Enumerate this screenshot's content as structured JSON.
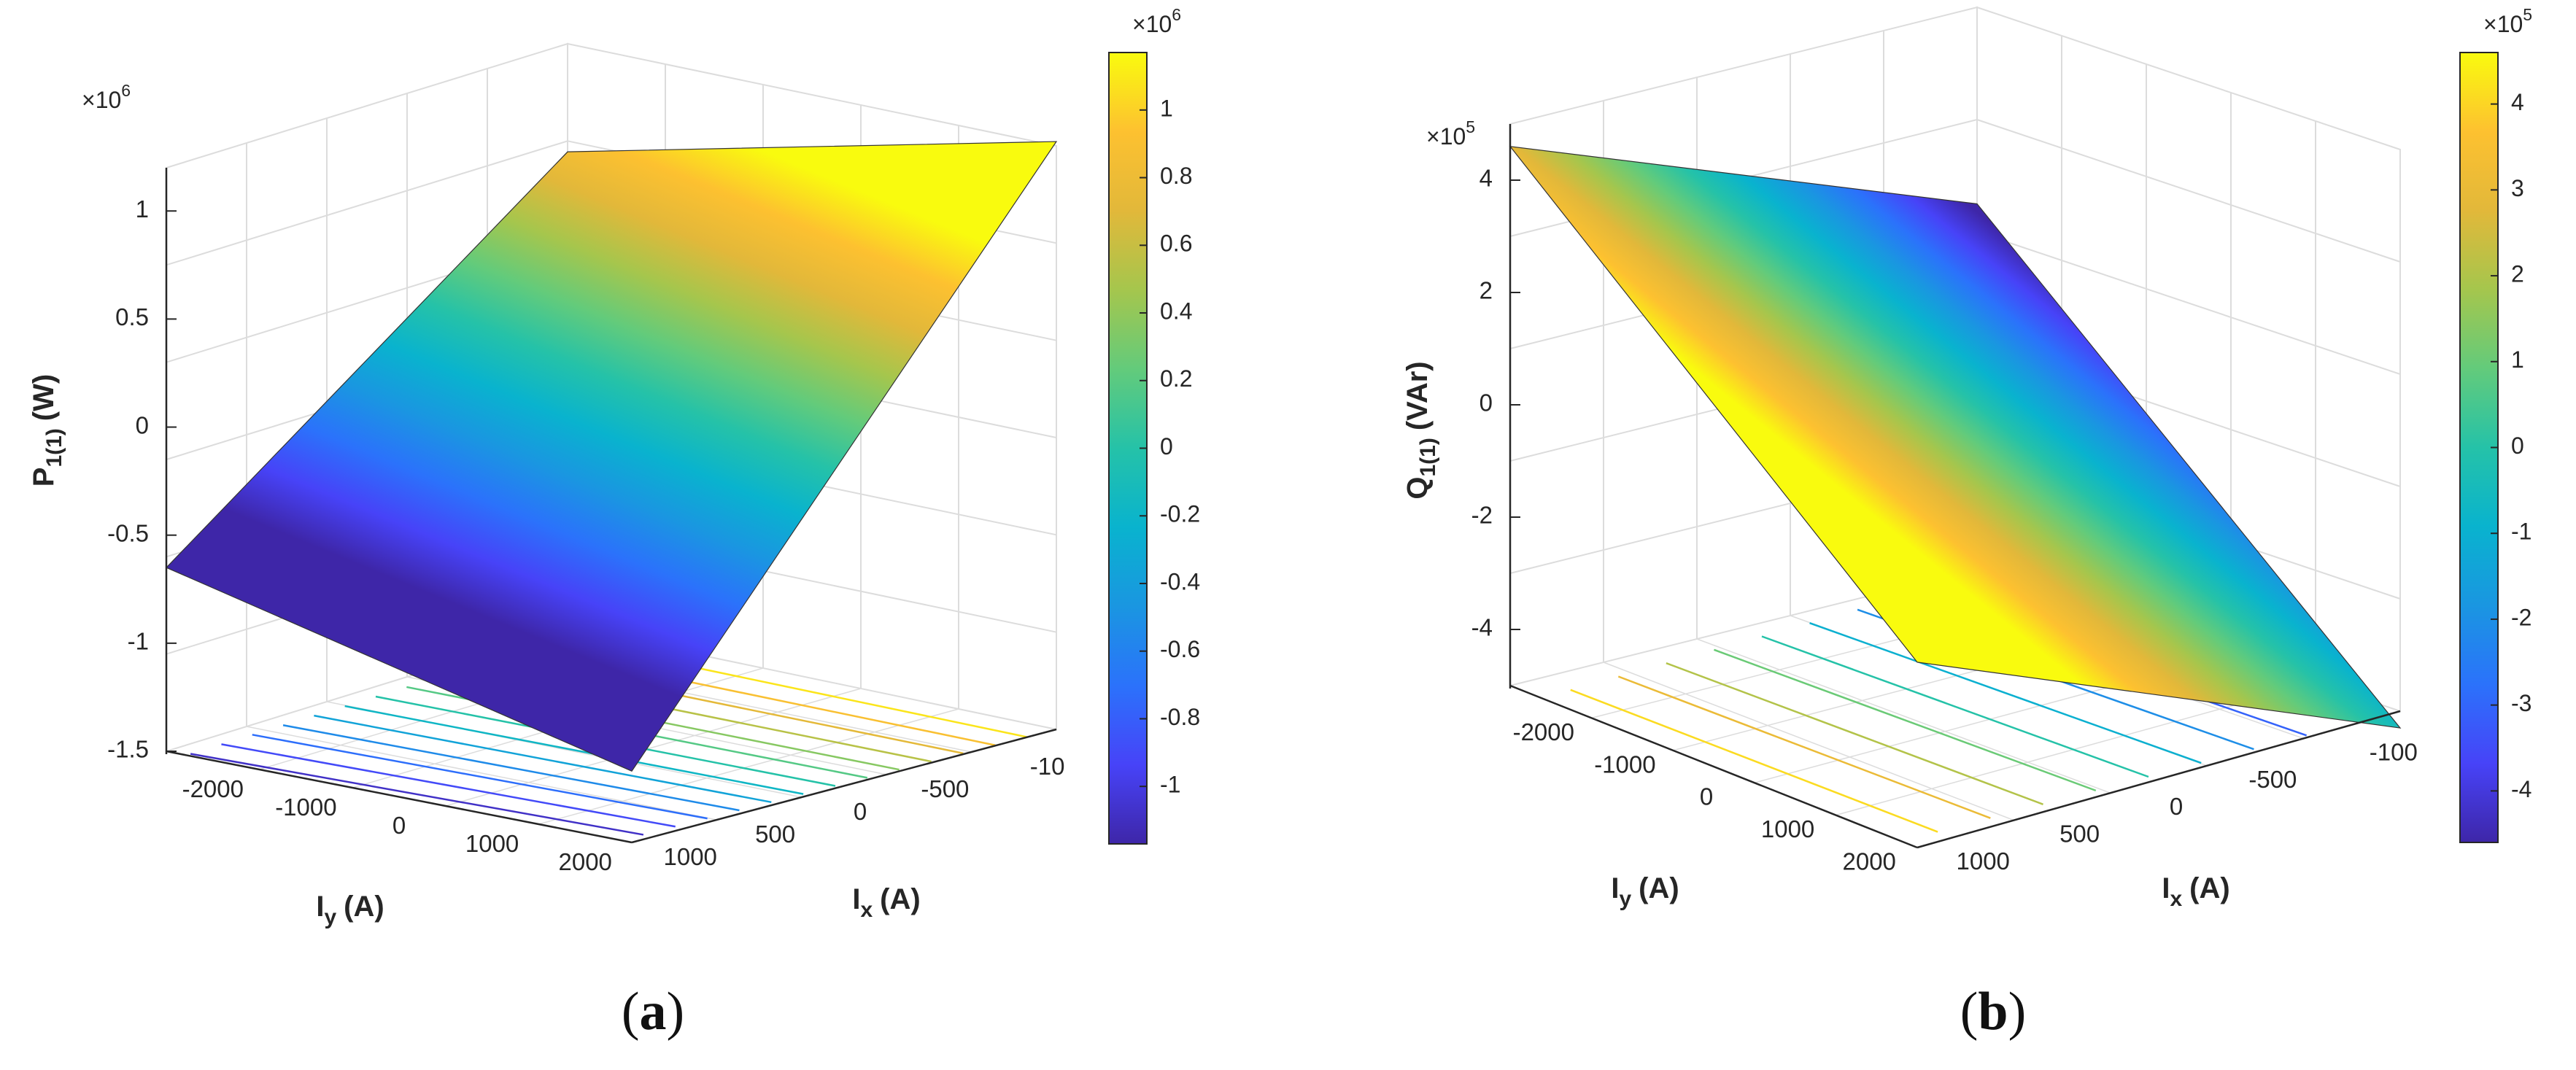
{
  "colors": {
    "colormap": [
      "#3e26a8",
      "#4743f8",
      "#2b72fb",
      "#1a96e1",
      "#09b3ce",
      "#25c2a8",
      "#63cb7b",
      "#a5c64d",
      "#e2b83a",
      "#fdc130",
      "#f9fb0e"
    ],
    "grid": "#dcdcdc",
    "axis": "#262626",
    "surface_edge": "#333333",
    "caption": "#111111"
  },
  "chart_data": [
    {
      "type": "surface3d",
      "panel_label": "a",
      "zlabel": {
        "main": "P",
        "subscript": "1(1)",
        "unit": "(W)"
      },
      "xlabel": {
        "main": "I",
        "subscript": "y",
        "unit": "(A)"
      },
      "ylabel": {
        "main": "I",
        "subscript": "x",
        "unit": "(A)"
      },
      "iy_ticks": [
        "-2000",
        "-1000",
        "0",
        "1000",
        "2000"
      ],
      "ix_ticks": [
        "1000",
        "500",
        "0",
        "-500",
        "-10"
      ],
      "z_ticks": [
        "1",
        "0.5",
        "0",
        "-0.5",
        "-1",
        "-1.5"
      ],
      "z_multiplier": "×10",
      "z_exponent": "6",
      "z_range": [
        -1.5,
        1.2
      ],
      "surface_corners": {
        "near": -1.17,
        "left": -0.65,
        "right": 1.22,
        "far": 0.7
      },
      "contour_levels": 13,
      "colorbar": {
        "ticks": [
          "1",
          "0.8",
          "0.6",
          "0.4",
          "0.2",
          "0",
          "-0.2",
          "-0.4",
          "-0.6",
          "-0.8",
          "-1"
        ],
        "tick_values": [
          1,
          0.8,
          0.6,
          0.4,
          0.2,
          0,
          -0.2,
          -0.4,
          -0.6,
          -0.8,
          -1
        ],
        "range": [
          -1.17,
          1.17
        ],
        "multiplier": "×10",
        "exponent": "6"
      }
    },
    {
      "type": "surface3d",
      "panel_label": "b",
      "zlabel": {
        "main": "Q",
        "subscript": "1(1)",
        "unit": "(VAr)"
      },
      "xlabel": {
        "main": "I",
        "subscript": "y",
        "unit": "(A)"
      },
      "ylabel": {
        "main": "I",
        "subscript": "x",
        "unit": "(A)"
      },
      "iy_ticks": [
        "-2000",
        "-1000",
        "0",
        "1000",
        "2000"
      ],
      "ix_ticks": [
        "1000",
        "500",
        "0",
        "-500",
        "-100"
      ],
      "z_ticks": [
        "4",
        "2",
        "0",
        "-2",
        "-4"
      ],
      "z_multiplier": "×10",
      "z_exponent": "5",
      "z_range": [
        -5,
        5
      ],
      "surface_corners": {
        "near": -1.7,
        "left": 4.6,
        "right": -5.3,
        "far": 1.5
      },
      "contour_levels": 9,
      "colorbar": {
        "ticks": [
          "4",
          "3",
          "2",
          "1",
          "0",
          "-1",
          "-2",
          "-3",
          "-4"
        ],
        "tick_values": [
          4,
          3,
          2,
          1,
          0,
          -1,
          -2,
          -3,
          -4
        ],
        "range": [
          -4.6,
          4.6
        ],
        "multiplier": "×10",
        "exponent": "5"
      }
    }
  ]
}
